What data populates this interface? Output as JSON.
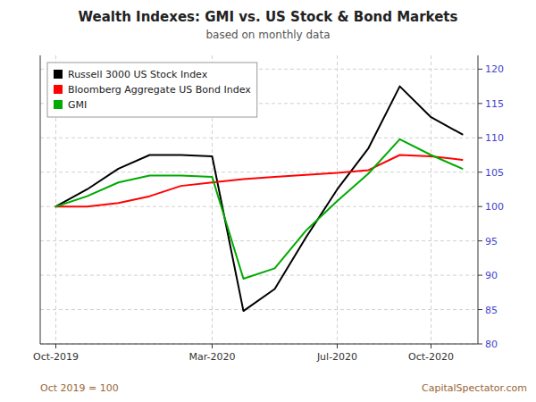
{
  "chart_data": {
    "type": "line",
    "title": "Wealth Indexes: GMI vs. US Stock & Bond Markets",
    "subtitle": "based on monthly data",
    "annotations": [
      "Oct 2019 = 100",
      "CapitalSpectator.com"
    ],
    "categories": [
      "Oct-2019",
      null,
      null,
      null,
      null,
      "Mar-2020",
      null,
      null,
      null,
      "Jul-2020",
      null,
      null,
      "Oct-2020",
      null
    ],
    "series": [
      {
        "name": "Russell 3000 US Stock Index",
        "color": "#000000",
        "values": [
          100.0,
          102.5,
          105.5,
          107.5,
          107.5,
          107.3,
          84.8,
          88.0,
          95.5,
          102.5,
          108.5,
          117.5,
          113.0,
          110.5
        ]
      },
      {
        "name": "Bloomberg Aggregate US Bond Index",
        "color": "#ff0000",
        "values": [
          100.0,
          100.0,
          100.5,
          101.5,
          103.0,
          103.5,
          104.0,
          104.3,
          104.6,
          104.9,
          105.3,
          107.5,
          107.3,
          106.8
        ]
      },
      {
        "name": "GMI",
        "color": "#00aa00",
        "values": [
          100.0,
          101.5,
          103.5,
          104.5,
          104.5,
          104.3,
          89.5,
          91.0,
          96.5,
          100.8,
          104.8,
          109.8,
          107.5,
          105.5
        ]
      }
    ],
    "ylim": [
      80,
      122
    ],
    "yticks": [
      80,
      85,
      90,
      95,
      100,
      105,
      110,
      115,
      120
    ],
    "grid": true,
    "legend": "upper left"
  }
}
